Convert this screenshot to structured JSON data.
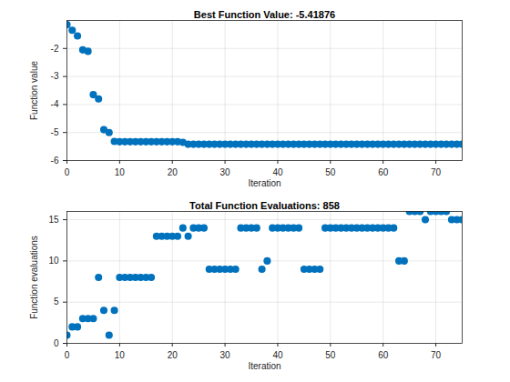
{
  "chart_data": [
    {
      "type": "scatter",
      "title": "Best Function Value: -5.41876",
      "x_label": "Iteration",
      "y_label": "Function value",
      "x": [
        0,
        1,
        2,
        3,
        4,
        5,
        6,
        7,
        8,
        9,
        10,
        11,
        12,
        13,
        14,
        15,
        16,
        17,
        18,
        19,
        20,
        21,
        22,
        23,
        24,
        25,
        26,
        27,
        28,
        29,
        30,
        31,
        32,
        33,
        34,
        35,
        36,
        37,
        38,
        39,
        40,
        41,
        42,
        43,
        44,
        45,
        46,
        47,
        48,
        49,
        50,
        51,
        52,
        53,
        54,
        55,
        56,
        57,
        58,
        59,
        60,
        61,
        62,
        63,
        64,
        65,
        66,
        67,
        68,
        69,
        70,
        71,
        72,
        73,
        74,
        75
      ],
      "values": [
        -1.15,
        -1.35,
        -1.55,
        -2.05,
        -2.1,
        -3.65,
        -3.8,
        -4.9,
        -5.0,
        -5.32,
        -5.33,
        -5.33,
        -5.33,
        -5.33,
        -5.33,
        -5.33,
        -5.33,
        -5.33,
        -5.33,
        -5.33,
        -5.33,
        -5.33,
        -5.35,
        -5.41876,
        -5.41876,
        -5.41876,
        -5.41876,
        -5.41876,
        -5.41876,
        -5.41876,
        -5.41876,
        -5.41876,
        -5.41876,
        -5.41876,
        -5.41876,
        -5.41876,
        -5.41876,
        -5.41876,
        -5.41876,
        -5.41876,
        -5.41876,
        -5.41876,
        -5.41876,
        -5.41876,
        -5.41876,
        -5.41876,
        -5.41876,
        -5.41876,
        -5.41876,
        -5.41876,
        -5.41876,
        -5.41876,
        -5.41876,
        -5.41876,
        -5.41876,
        -5.41876,
        -5.41876,
        -5.41876,
        -5.41876,
        -5.41876,
        -5.41876,
        -5.41876,
        -5.41876,
        -5.41876,
        -5.41876,
        -5.41876,
        -5.41876,
        -5.41876,
        -5.41876,
        -5.41876,
        -5.41876,
        -5.41876,
        -5.41876,
        -5.41876,
        -5.41876,
        -5.41876
      ],
      "xlim": [
        0,
        75
      ],
      "xticks": [
        0,
        10,
        20,
        30,
        40,
        50,
        60,
        70
      ],
      "ylim": [
        -6,
        -1
      ],
      "yticks": [
        -6,
        -5,
        -4,
        -3,
        -2
      ],
      "grid": true,
      "color": "#0072bd",
      "marker": "o"
    },
    {
      "type": "scatter",
      "title": "Total Function Evaluations: 858",
      "x_label": "Iteration",
      "y_label": "Function evaluations",
      "x": [
        0,
        1,
        2,
        3,
        4,
        5,
        6,
        7,
        8,
        9,
        10,
        11,
        12,
        13,
        14,
        15,
        16,
        17,
        18,
        19,
        20,
        21,
        22,
        23,
        24,
        25,
        26,
        27,
        28,
        29,
        30,
        31,
        32,
        33,
        34,
        35,
        36,
        37,
        38,
        39,
        40,
        41,
        42,
        43,
        44,
        45,
        46,
        47,
        48,
        49,
        50,
        51,
        52,
        53,
        54,
        55,
        56,
        57,
        58,
        59,
        60,
        61,
        62,
        63,
        64,
        65,
        66,
        67,
        68,
        69,
        70,
        71,
        72,
        73,
        74,
        75
      ],
      "values": [
        1,
        2,
        2,
        3,
        3,
        3,
        8,
        4,
        1,
        4,
        8,
        8,
        8,
        8,
        8,
        8,
        8,
        13,
        13,
        13,
        13,
        13,
        14,
        13,
        14,
        14,
        14,
        9,
        9,
        9,
        9,
        9,
        9,
        14,
        14,
        14,
        14,
        9,
        10,
        14,
        14,
        14,
        14,
        14,
        14,
        9,
        9,
        9,
        9,
        14,
        14,
        14,
        14,
        14,
        14,
        14,
        14,
        14,
        14,
        14,
        14,
        14,
        14,
        10,
        10,
        16,
        16,
        16,
        15,
        16,
        16,
        16,
        16,
        15,
        15,
        15
      ],
      "xlim": [
        0,
        75
      ],
      "xticks": [
        0,
        10,
        20,
        30,
        40,
        50,
        60,
        70
      ],
      "ylim": [
        0,
        16
      ],
      "yticks": [
        0,
        5,
        10,
        15
      ],
      "grid": true,
      "color": "#0072bd",
      "marker": "o"
    }
  ]
}
